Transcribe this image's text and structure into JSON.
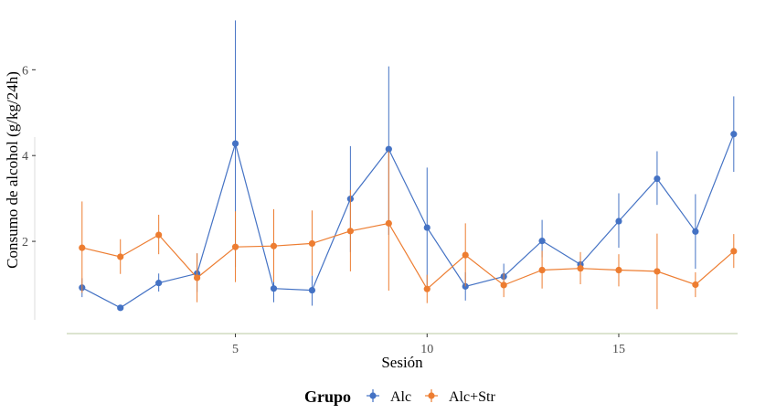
{
  "chart_data": {
    "type": "line",
    "title": "",
    "xlabel": "Sesión",
    "ylabel": "Consumo de alcohol (g/kg/24h)",
    "xlim": [
      0.6,
      18.1
    ],
    "ylim": [
      -0.15,
      7.2
    ],
    "x_ticks": [
      5,
      10,
      15
    ],
    "y_ticks": [
      2,
      4,
      6
    ],
    "grid": false,
    "legend": {
      "title": "Grupo",
      "position": "bottom"
    },
    "x": [
      1,
      2,
      3,
      4,
      5,
      6,
      7,
      8,
      9,
      10,
      11,
      12,
      13,
      14,
      15,
      16,
      17,
      18
    ],
    "series": [
      {
        "name": "Alc",
        "color": "#4472C4",
        "values": [
          0.92,
          0.45,
          1.03,
          1.25,
          4.28,
          0.9,
          0.86,
          2.99,
          4.15,
          2.32,
          0.95,
          1.18,
          2.01,
          1.46,
          2.47,
          3.46,
          2.23,
          4.5
        ],
        "error_low": [
          0.7,
          0.45,
          0.83,
          0.82,
          1.4,
          0.58,
          0.5,
          1.75,
          2.15,
          0.9,
          0.62,
          0.95,
          1.63,
          1.3,
          1.85,
          2.85,
          1.36,
          3.62
        ],
        "error_high": [
          1.14,
          0.45,
          1.25,
          1.72,
          7.15,
          1.2,
          1.2,
          4.22,
          6.08,
          3.72,
          1.28,
          1.48,
          2.5,
          1.65,
          3.12,
          4.1,
          3.1,
          5.38
        ]
      },
      {
        "name": "Alc+Str",
        "color": "#ED7D31",
        "values": [
          1.85,
          1.64,
          2.15,
          1.15,
          1.87,
          1.89,
          1.95,
          2.24,
          2.42,
          0.89,
          1.68,
          0.98,
          1.33,
          1.37,
          1.33,
          1.3,
          0.99,
          1.77
        ],
        "error_low": [
          0.8,
          1.24,
          1.7,
          0.58,
          1.05,
          1.05,
          1.2,
          1.3,
          0.85,
          0.56,
          0.95,
          0.7,
          0.9,
          1.0,
          0.95,
          0.42,
          0.7,
          1.38
        ],
        "error_high": [
          2.93,
          2.05,
          2.62,
          1.72,
          2.7,
          2.75,
          2.72,
          3.2,
          4.1,
          1.22,
          2.42,
          1.26,
          1.78,
          1.75,
          1.7,
          2.18,
          1.28,
          2.17
        ]
      }
    ]
  }
}
